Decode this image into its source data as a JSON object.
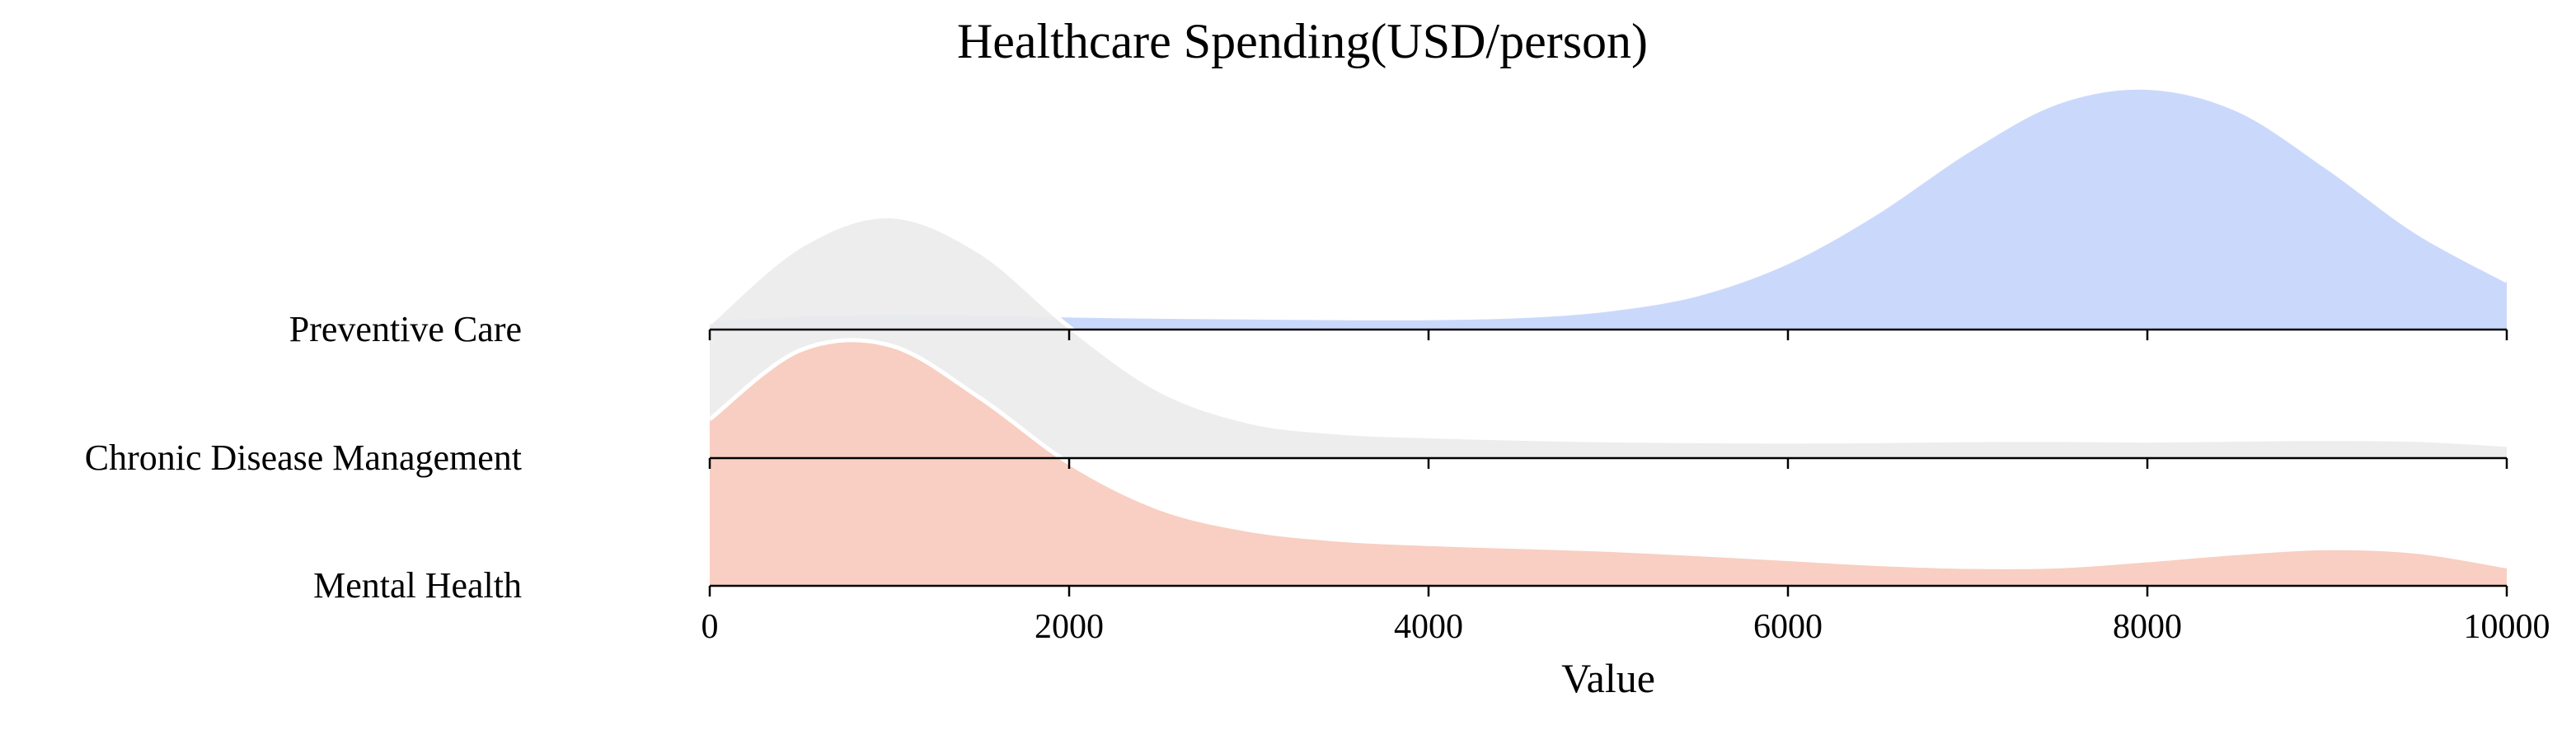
{
  "chart_data": {
    "type": "area",
    "subtype": "ridgeline",
    "title": "Healthcare Spending(USD/person)",
    "xlabel": "Value",
    "ylabel": "",
    "xlim": [
      0,
      10000
    ],
    "xticks": [
      0,
      2000,
      4000,
      6000,
      8000,
      10000
    ],
    "grid": false,
    "legend": "none",
    "series": [
      {
        "name": "Preventive Care",
        "color": "#c5d6fb",
        "x": [
          0,
          500,
          1000,
          1500,
          2000,
          2500,
          3000,
          3500,
          4000,
          4500,
          5000,
          5500,
          6000,
          6500,
          7000,
          7500,
          8000,
          8500,
          9000,
          9500,
          10000
        ],
        "density": [
          0.043,
          0.062,
          0.068,
          0.066,
          0.058,
          0.053,
          0.05,
          0.047,
          0.047,
          0.055,
          0.082,
          0.146,
          0.278,
          0.484,
          0.735,
          0.935,
          0.995,
          0.905,
          0.668,
          0.4,
          0.2
        ]
      },
      {
        "name": "Chronic Disease Management",
        "color": "#ececec",
        "x": [
          0,
          500,
          1000,
          1500,
          2000,
          2500,
          3000,
          3500,
          4000,
          4500,
          5000,
          5500,
          6000,
          6500,
          7000,
          7500,
          8000,
          8500,
          9000,
          9500,
          10000
        ],
        "density": [
          0.555,
          0.87,
          0.995,
          0.85,
          0.54,
          0.28,
          0.15,
          0.105,
          0.09,
          0.08,
          0.073,
          0.07,
          0.068,
          0.07,
          0.074,
          0.075,
          0.072,
          0.076,
          0.079,
          0.075,
          0.055
        ]
      },
      {
        "name": "Mental Health",
        "color": "#f7cbbd",
        "x": [
          0,
          500,
          1000,
          1500,
          2000,
          2500,
          3000,
          3500,
          4000,
          4500,
          5000,
          5500,
          6000,
          6500,
          7000,
          7500,
          8000,
          8500,
          9000,
          9500,
          10000
        ],
        "density": [
          0.685,
          0.968,
          0.99,
          0.775,
          0.505,
          0.32,
          0.23,
          0.19,
          0.172,
          0.16,
          0.148,
          0.13,
          0.11,
          0.09,
          0.078,
          0.08,
          0.105,
          0.135,
          0.155,
          0.14,
          0.08
        ]
      }
    ]
  }
}
